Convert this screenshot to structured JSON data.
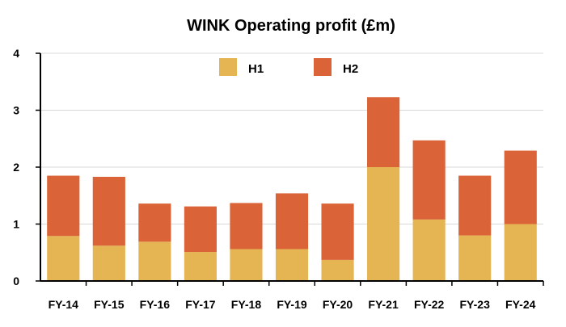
{
  "chart_data": {
    "type": "bar",
    "stacked": true,
    "title": "WINK Operating profit (£m)",
    "xlabel": "",
    "ylabel": "",
    "ylim": [
      0,
      4
    ],
    "yticks": [
      0,
      1,
      2,
      3,
      4
    ],
    "categories": [
      "FY-14",
      "FY-15",
      "FY-16",
      "FY-17",
      "FY-18",
      "FY-19",
      "FY-20",
      "FY-21",
      "FY-22",
      "FY-23",
      "FY-24"
    ],
    "series": [
      {
        "name": "H1",
        "color": "#E6B553",
        "values": [
          0.79,
          0.62,
          0.69,
          0.51,
          0.56,
          0.56,
          0.37,
          2.0,
          1.08,
          0.8,
          1.0
        ]
      },
      {
        "name": "H2",
        "color": "#DA6438",
        "values": [
          1.06,
          1.21,
          0.67,
          0.8,
          0.81,
          0.98,
          0.99,
          1.23,
          1.39,
          1.05,
          1.29
        ]
      }
    ],
    "grid": true,
    "legend_position": "top-center"
  }
}
